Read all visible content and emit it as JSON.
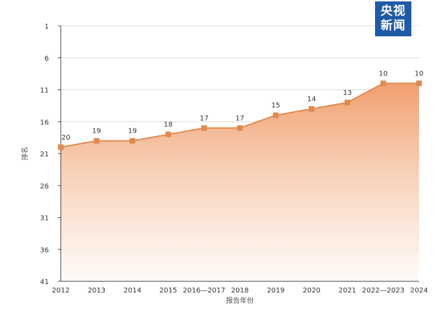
{
  "logo": {
    "line1": "央视",
    "line2": "新闻"
  },
  "chart_data": {
    "type": "area",
    "categories": [
      "2012",
      "2013",
      "2014",
      "2015",
      "2016—2017",
      "2018",
      "2019",
      "2020",
      "2021",
      "2022—2023",
      "2024"
    ],
    "series": [
      {
        "values": [
          20,
          19,
          19,
          18,
          17,
          17,
          15,
          14,
          13,
          10,
          10
        ]
      }
    ],
    "data_labels": [
      "20",
      "19",
      "19",
      "18",
      "17",
      "17",
      "15",
      "14",
      "13",
      "10",
      "10"
    ],
    "xlabel": "报告年份",
    "ylabel": "排名",
    "y_ticks": [
      "1",
      "6",
      "11",
      "16",
      "21",
      "26",
      "31",
      "36",
      "41"
    ],
    "ylim": [
      1,
      41
    ],
    "y_reversed": true,
    "grid": true,
    "colors": {
      "line": "#e08a4f",
      "fill_top": "#ef9a66",
      "fill_bottom": "#fff7f2",
      "grid": "#dcdcdc"
    }
  }
}
